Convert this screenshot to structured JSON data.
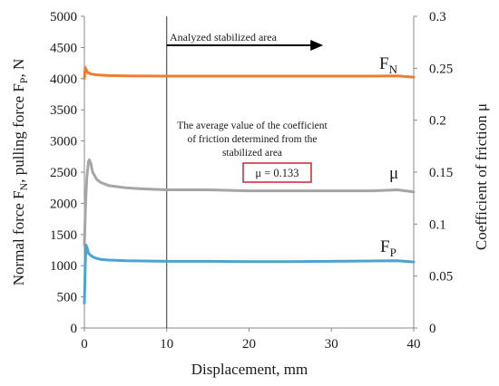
{
  "chart_data": {
    "type": "line",
    "xlabel": "Displacement, mm",
    "ylabel_left": "Normal force F_N, pulling force F_P, N",
    "ylabel_left_parts": [
      "Normal force F",
      "N",
      ", pulling force F",
      "P",
      ", N"
    ],
    "ylabel_right": "Coefficient of friction μ",
    "xlim": [
      0,
      40
    ],
    "ylim_left": [
      0,
      5000
    ],
    "ylim_right": [
      0,
      0.3
    ],
    "x_ticks": [
      "0",
      "10",
      "20",
      "30",
      "40"
    ],
    "y_ticks_left": [
      "0",
      "500",
      "1000",
      "1500",
      "2000",
      "2500",
      "3000",
      "3500",
      "4000",
      "4500",
      "5000"
    ],
    "y_ticks_right": [
      "0",
      "0.05",
      "0.1",
      "0.15",
      "0.2",
      "0.25",
      "0.3"
    ],
    "grid": false,
    "series": [
      {
        "name": "F_N",
        "label_main": "F",
        "label_sub": "N",
        "color": "#ED7D31",
        "axis": "left",
        "x": [
          0,
          0.1,
          0.2,
          0.4,
          0.8,
          1.5,
          3,
          5,
          10,
          15,
          20,
          25,
          30,
          35,
          38,
          40
        ],
        "y": [
          4000,
          4180,
          4150,
          4100,
          4075,
          4060,
          4050,
          4045,
          4040,
          4040,
          4040,
          4040,
          4040,
          4040,
          4045,
          4025
        ]
      },
      {
        "name": "mu",
        "label_main": "μ",
        "label_sub": "",
        "color": "#A5A5A5",
        "axis": "right",
        "x": [
          0,
          0.15,
          0.3,
          0.5,
          0.6,
          0.8,
          1.0,
          1.5,
          2,
          3,
          5,
          7,
          10,
          15,
          20,
          25,
          30,
          35,
          38,
          40
        ],
        "y": [
          0.08,
          0.12,
          0.145,
          0.16,
          0.162,
          0.158,
          0.15,
          0.143,
          0.14,
          0.137,
          0.135,
          0.134,
          0.133,
          0.133,
          0.132,
          0.132,
          0.132,
          0.132,
          0.133,
          0.131
        ]
      },
      {
        "name": "F_P",
        "label_main": "F",
        "label_sub": "P",
        "color": "#4BA3D2",
        "axis": "left",
        "x": [
          0,
          0.1,
          0.2,
          0.3,
          0.5,
          0.8,
          1.2,
          2,
          3,
          5,
          10,
          15,
          20,
          25,
          30,
          35,
          38,
          40
        ],
        "y": [
          400,
          1000,
          1330,
          1300,
          1200,
          1160,
          1130,
          1100,
          1090,
          1080,
          1070,
          1070,
          1065,
          1065,
          1070,
          1075,
          1080,
          1060
        ]
      }
    ],
    "annotations": {
      "arrow_text": "Analyzed stabilized area",
      "arrow_x_from": 10,
      "arrow_x_to": 29,
      "stabilized_marker_x": 10,
      "note_lines": [
        "The average value of the coefficient",
        "of friction determined from the",
        "stabilized area"
      ],
      "mu_box": "μ = 0.133",
      "mu_box_border_color": "#D0232A"
    }
  }
}
